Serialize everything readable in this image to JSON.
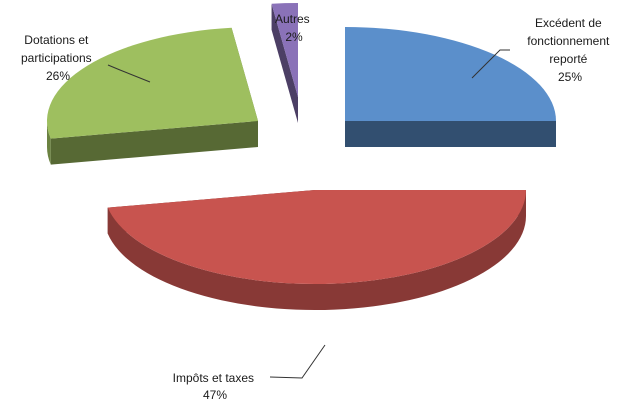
{
  "chart_data": {
    "type": "pie",
    "style": "3d-exploded",
    "legend": "none",
    "title": "",
    "slices": [
      {
        "name_lines": [
          "Excédent de",
          "fonctionnement",
          "reporté"
        ],
        "percent_label": "25%",
        "value": 25,
        "color": "#5b8fcb"
      },
      {
        "name_lines": [
          "Impôts et taxes"
        ],
        "percent_label": "47%",
        "value": 47,
        "color": "#c8544f"
      },
      {
        "name_lines": [
          "Dotations et",
          "participations"
        ],
        "percent_label": "26%",
        "value": 26,
        "color": "#9ebf5f"
      },
      {
        "name_lines": [
          "Autres"
        ],
        "percent_label": "2%",
        "value": 2,
        "color": "#8a72b8"
      }
    ]
  }
}
